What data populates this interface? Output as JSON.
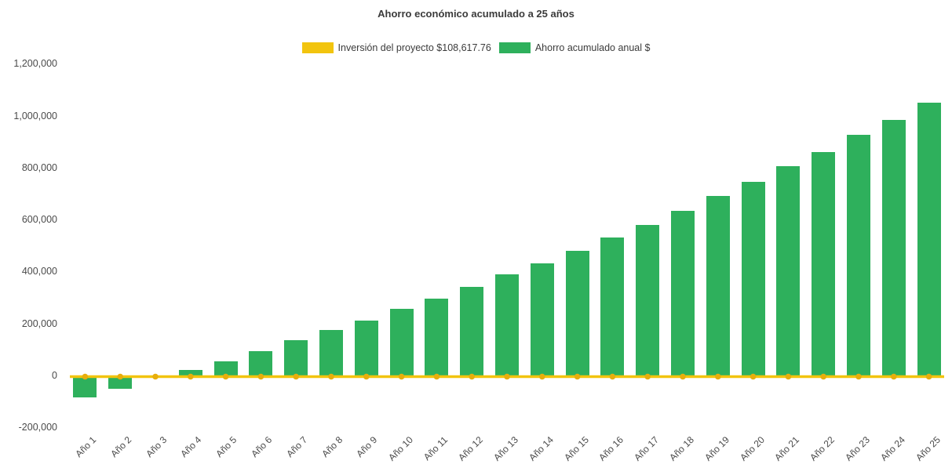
{
  "chart_data": {
    "type": "bar",
    "title": "Ahorro económico acumulado a 25 años",
    "categories": [
      "Año 1",
      "Año 2",
      "Año 3",
      "Año 4",
      "Año 5",
      "Año 6",
      "Año 7",
      "Año 8",
      "Año 9",
      "Año 10",
      "Año 11",
      "Año 12",
      "Año 13",
      "Año 14",
      "Año 15",
      "Año 16",
      "Año 17",
      "Año 18",
      "Año 19",
      "Año 20",
      "Año 21",
      "Año 22",
      "Año 23",
      "Año 24",
      "Año 25"
    ],
    "series": [
      {
        "name": "Inversión del proyecto $108,617.76",
        "type": "line",
        "color": "#F2C40E",
        "marker_color": "#E8AE0C",
        "values": [
          0,
          0,
          0,
          0,
          0,
          0,
          0,
          0,
          0,
          0,
          0,
          0,
          0,
          0,
          0,
          0,
          0,
          0,
          0,
          0,
          0,
          0,
          0,
          0,
          0
        ]
      },
      {
        "name": "Ahorro acumulado anual $",
        "type": "bar",
        "color": "#2EB05C",
        "values": [
          -85000,
          -50000,
          -10000,
          20000,
          55000,
          95000,
          135000,
          175000,
          210000,
          255000,
          295000,
          340000,
          390000,
          430000,
          480000,
          530000,
          580000,
          635000,
          690000,
          745000,
          805000,
          860000,
          925000,
          985000,
          1050000
        ]
      }
    ],
    "ylim": [
      -200000,
      1200000
    ],
    "yticks": [
      -200000,
      0,
      200000,
      400000,
      600000,
      800000,
      1000000,
      1200000
    ],
    "ytick_labels": [
      "-200,000",
      "0",
      "200,000",
      "400,000",
      "600,000",
      "800,000",
      "1,000,000",
      "1,200,000"
    ],
    "grid": false,
    "legend_position": "top"
  }
}
